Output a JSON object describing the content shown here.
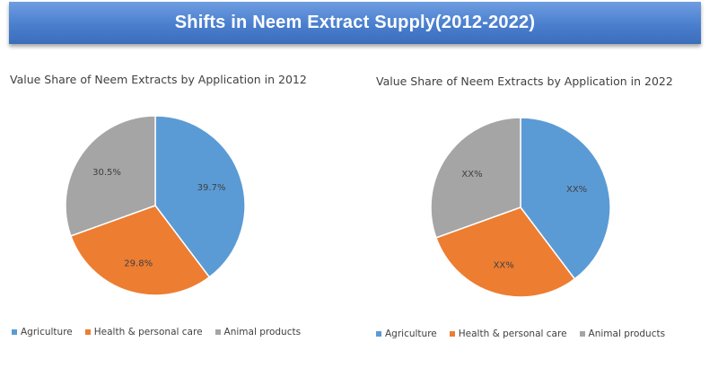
{
  "header": {
    "title": "Shifts in Neem Extract Supply(2012-2022)"
  },
  "colors": {
    "agriculture": "#5b9bd5",
    "health": "#ed7d31",
    "animal": "#a5a5a5",
    "banner": "#4a7fce"
  },
  "chart_data": [
    {
      "type": "pie",
      "title": "Value Share of Neem Extracts by Application in 2012",
      "categories": [
        "Agriculture",
        "Health & personal care",
        "Animal products"
      ],
      "values": [
        39.7,
        29.8,
        30.5
      ],
      "labels": [
        "39.7%",
        "29.8%",
        "30.5%"
      ],
      "legend_position": "bottom"
    },
    {
      "type": "pie",
      "title": "Value Share of Neem Extracts by Application in 2022",
      "categories": [
        "Agriculture",
        "Health & personal care",
        "Animal products"
      ],
      "values": [
        39.7,
        29.8,
        30.5
      ],
      "labels": [
        "XX%",
        "XX%",
        "XX%"
      ],
      "values_estimated": true,
      "legend_position": "bottom"
    }
  ]
}
